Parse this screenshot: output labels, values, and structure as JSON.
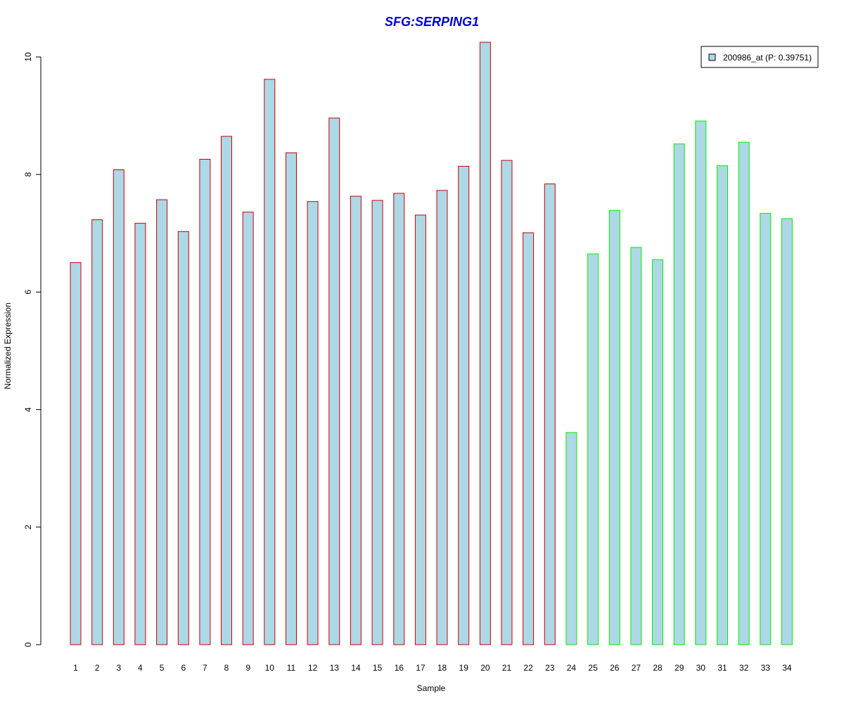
{
  "chart_data": {
    "type": "bar",
    "title": "SFG:SERPING1",
    "xlabel": "Sample",
    "ylabel": "Normalized Expression",
    "ylim": [
      0,
      10.3
    ],
    "yticks": [
      0,
      2,
      4,
      6,
      8,
      10
    ],
    "grid": false,
    "legend_position": "top-right",
    "categories": [
      "1",
      "2",
      "3",
      "4",
      "5",
      "6",
      "7",
      "8",
      "9",
      "10",
      "11",
      "12",
      "13",
      "14",
      "15",
      "16",
      "17",
      "18",
      "19",
      "20",
      "21",
      "22",
      "23",
      "24",
      "25",
      "26",
      "27",
      "28",
      "29",
      "30",
      "31",
      "32",
      "33",
      "34"
    ],
    "series": [
      {
        "name": "200986_at (P: 0.39751)",
        "values": [
          6.5,
          7.23,
          8.08,
          7.17,
          7.57,
          7.03,
          8.26,
          8.65,
          7.36,
          9.62,
          8.37,
          7.54,
          8.96,
          7.63,
          7.56,
          7.68,
          7.31,
          7.73,
          8.14,
          10.25,
          8.24,
          7.01,
          7.84,
          3.61,
          6.65,
          7.39,
          6.76,
          6.55,
          8.52,
          8.91,
          8.15,
          8.55,
          7.34,
          7.25
        ]
      }
    ],
    "groups": [
      {
        "from": 1,
        "to": 23,
        "border_color": "#cc0000"
      },
      {
        "from": 24,
        "to": 34,
        "border_color": "#00ee00"
      }
    ],
    "colors": {
      "bar_fill": "#add8e6",
      "title": "#0000cc",
      "axis": "#000000"
    }
  }
}
